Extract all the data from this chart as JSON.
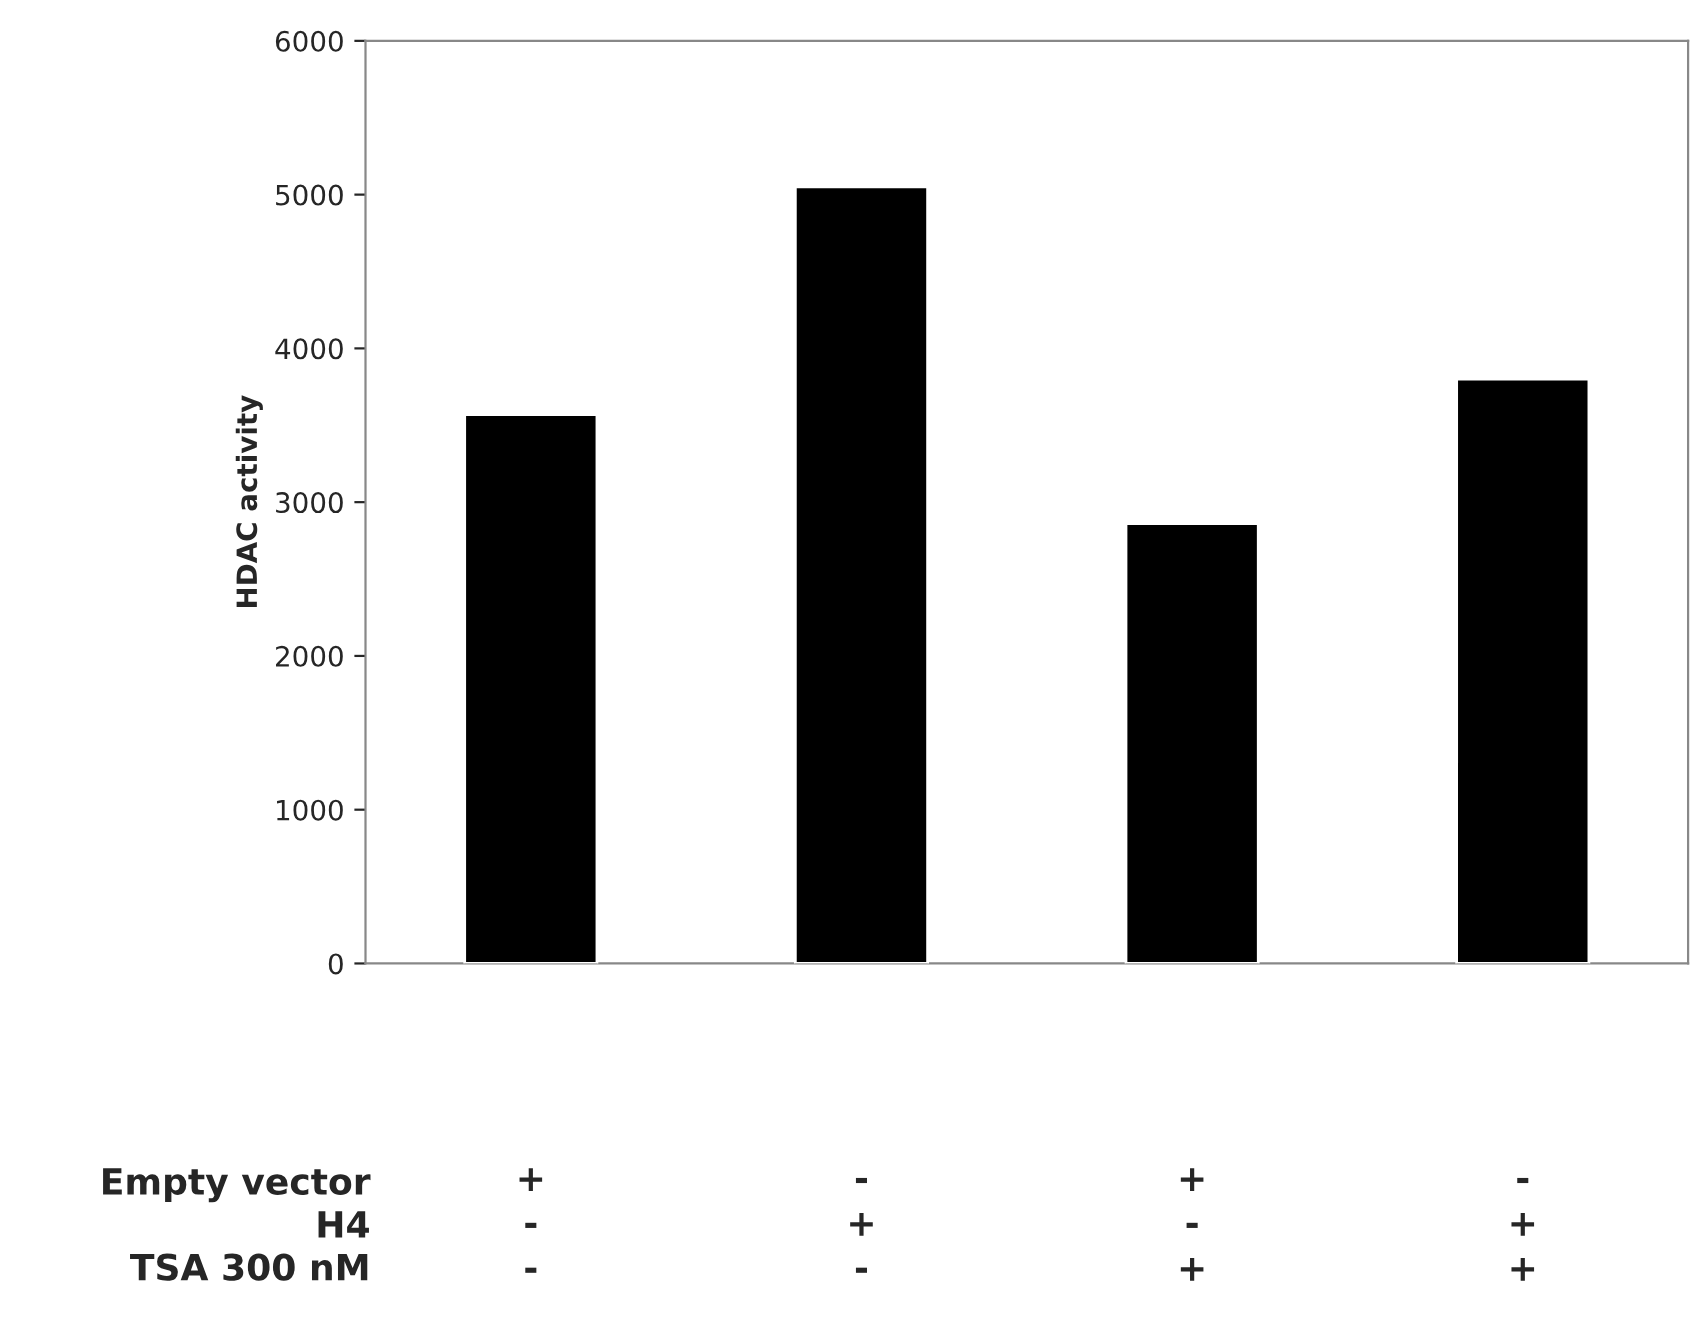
{
  "chart_data": {
    "type": "bar",
    "ylabel": "HDAC activity",
    "categories": [
      "+\n-\n-",
      "-\n+\n-",
      "+\n-\n+",
      "-\n+\n+"
    ],
    "values": [
      3570,
      5050,
      2860,
      3800
    ],
    "color": "#000000",
    "ylim": [
      0,
      6000
    ],
    "yticks": [
      0,
      1000,
      2000,
      3000,
      4000,
      5000,
      6000
    ],
    "grid": false,
    "legend": false,
    "annotations": [
      "Empty vector",
      "H4",
      "TSA 300 nM"
    ]
  }
}
